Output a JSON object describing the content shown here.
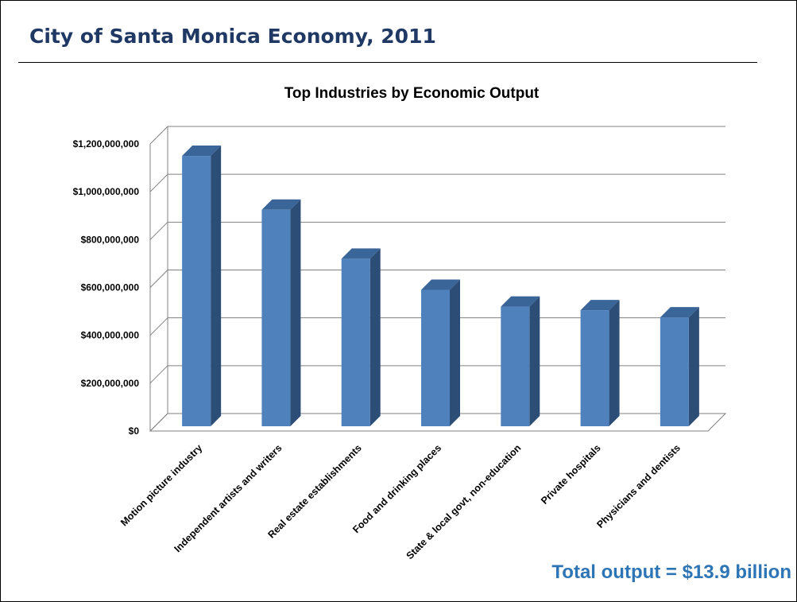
{
  "slide": {
    "title": "City of Santa Monica Economy, 2011",
    "total_note": "Total output = $13.9 billion"
  },
  "chart_data": {
    "type": "bar",
    "title": "Top Industries by Economic Output",
    "xlabel": "",
    "ylabel": "",
    "categories": [
      "Motion picture industry",
      "Independent artists and writers",
      "Real estate establishments",
      "Food and drinking places",
      "State & local govt, non-education",
      "Private hospitals",
      "Physicians and dentists"
    ],
    "values": [
      1130000000,
      905000000,
      700000000,
      570000000,
      500000000,
      485000000,
      455000000
    ],
    "ylim": [
      0,
      1200000000
    ],
    "yticks": [
      0,
      200000000,
      400000000,
      600000000,
      800000000,
      1000000000,
      1200000000
    ],
    "ytick_labels": [
      "$0",
      "$200,000,000",
      "$400,000,000",
      "$600,000,000",
      "$800,000,000",
      "$1,000,000,000",
      "$1,200,000,000"
    ],
    "grid": true,
    "legend": "none",
    "style": "3d-column",
    "colors": {
      "bar_front": "#4f81bd",
      "bar_side": "#2c4d75",
      "bar_top": "#3a6598",
      "grid": "#808080"
    }
  }
}
